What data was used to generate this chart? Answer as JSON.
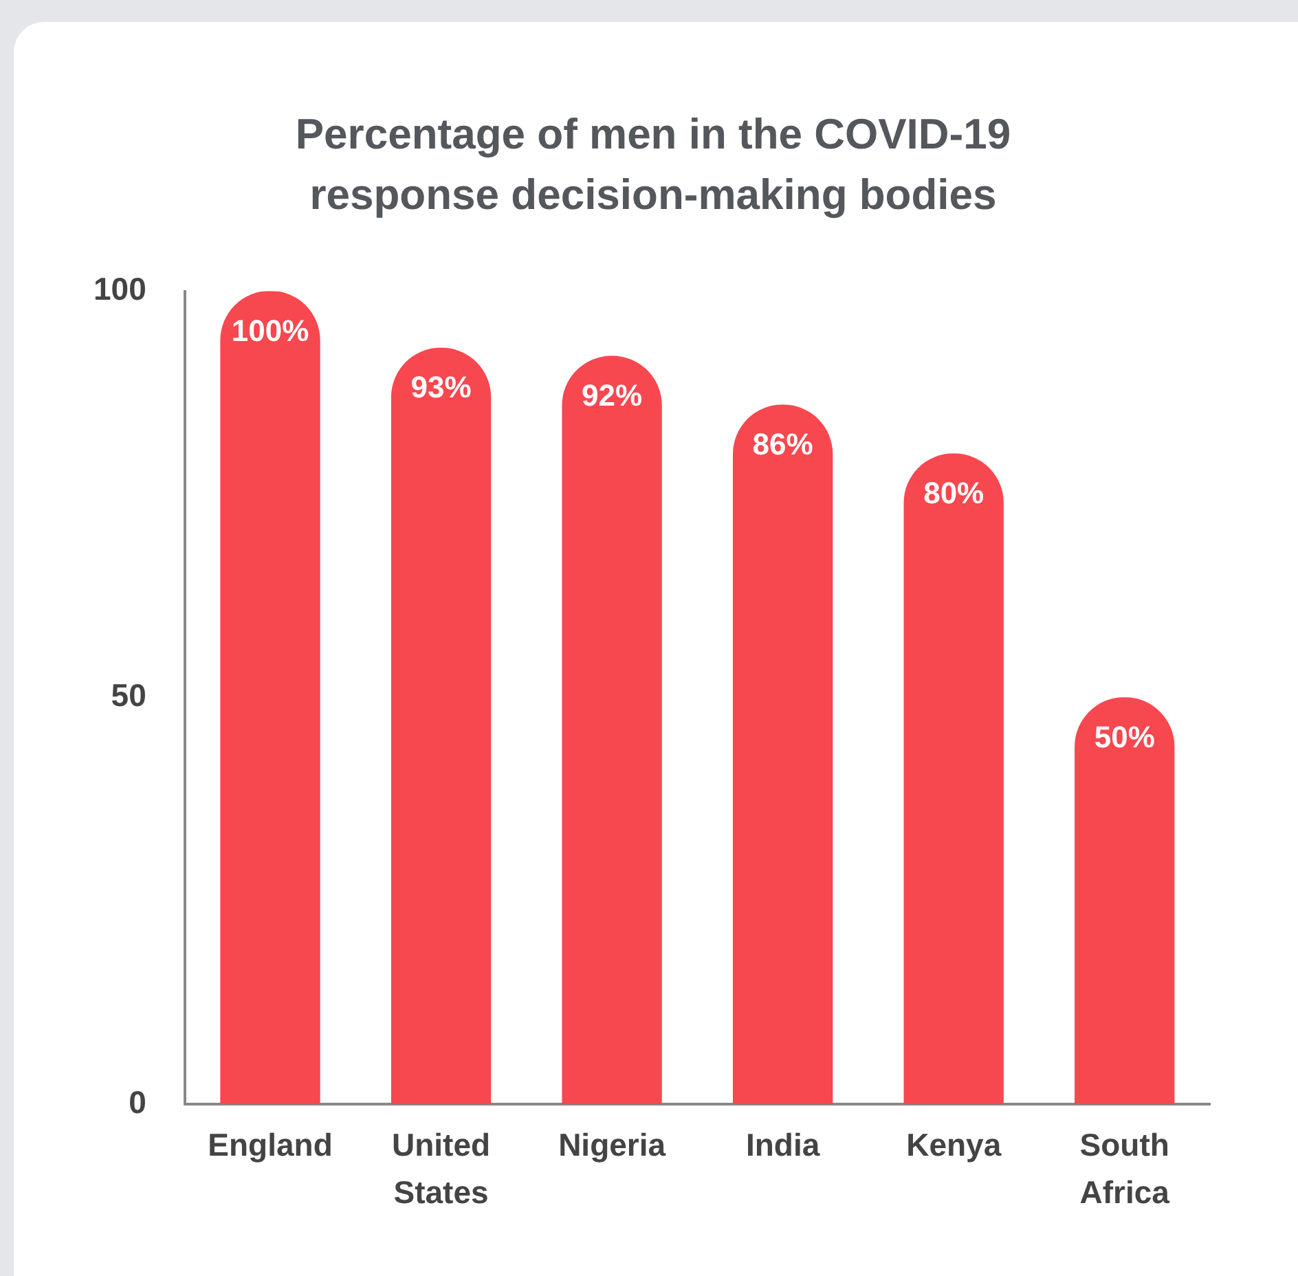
{
  "chart_data": {
    "type": "bar",
    "title": "Percentage of men in the COVID-19 response decision-making bodies",
    "categories": [
      "England",
      "United States",
      "Nigeria",
      "India",
      "Kenya",
      "South Africa"
    ],
    "values": [
      100,
      93,
      92,
      86,
      80,
      50
    ],
    "value_labels": [
      "100%",
      "93%",
      "92%",
      "86%",
      "80%",
      "50%"
    ],
    "color": "#f7474f",
    "ylim": [
      0,
      100
    ],
    "yticks": [
      0,
      50,
      100
    ],
    "grid": false,
    "legend": false
  }
}
